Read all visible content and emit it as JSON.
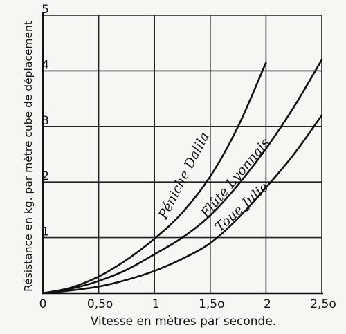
{
  "chart_data": {
    "type": "line",
    "title": "",
    "xlabel": "Vitesse en mètres par seconde.",
    "ylabel": "Résistance en kg. par mètre cube de déplacement",
    "xlim": [
      0,
      2.5
    ],
    "ylim": [
      0,
      5
    ],
    "x_ticks": [
      {
        "value": 0,
        "label": "0"
      },
      {
        "value": 0.5,
        "label": "0,5o"
      },
      {
        "value": 1,
        "label": "1"
      },
      {
        "value": 1.5,
        "label": "1,5o"
      },
      {
        "value": 2,
        "label": "2"
      },
      {
        "value": 2.5,
        "label": "2,5o"
      }
    ],
    "y_ticks": [
      {
        "value": 1,
        "label": "1"
      },
      {
        "value": 2,
        "label": "2"
      },
      {
        "value": 3,
        "label": "3"
      },
      {
        "value": 4,
        "label": "4"
      },
      {
        "value": 5,
        "label": "5"
      }
    ],
    "grid": true,
    "series": [
      {
        "name": "Péniche Dalila",
        "x": [
          0,
          0.25,
          0.5,
          0.75,
          1.0,
          1.25,
          1.5,
          1.75,
          2.0
        ],
        "y": [
          0,
          0.1,
          0.3,
          0.6,
          0.98,
          1.45,
          2.1,
          3.0,
          4.15
        ]
      },
      {
        "name": "Flûte Lyonnais",
        "x": [
          0,
          0.25,
          0.5,
          0.75,
          1.0,
          1.25,
          1.5,
          1.75,
          2.0,
          2.25,
          2.5
        ],
        "y": [
          0,
          0.08,
          0.22,
          0.42,
          0.7,
          1.0,
          1.4,
          1.95,
          2.6,
          3.35,
          4.2
        ]
      },
      {
        "name": "Toue Julie",
        "x": [
          0,
          0.25,
          0.5,
          0.75,
          1.0,
          1.25,
          1.5,
          1.75,
          2.0,
          2.25,
          2.5
        ],
        "y": [
          0,
          0.05,
          0.12,
          0.24,
          0.4,
          0.62,
          0.9,
          1.35,
          1.9,
          2.5,
          3.2
        ]
      }
    ]
  }
}
